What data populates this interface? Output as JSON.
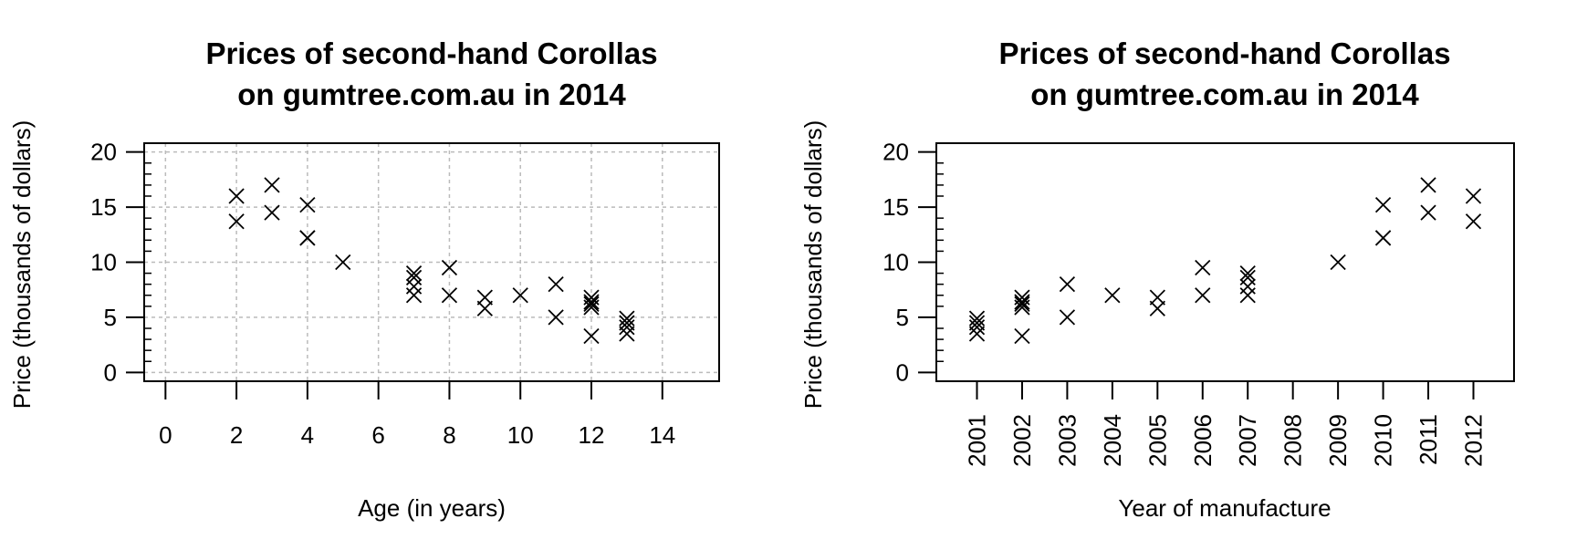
{
  "chart_data": [
    {
      "type": "scatter",
      "title": [
        "Prices of second-hand Corollas",
        "on gumtree.com.au in 2014"
      ],
      "xlabel": "Age (in years)",
      "ylabel": "Price (thousands of dollars)",
      "xlim": [
        -0.6,
        15.6
      ],
      "ylim": [
        -0.8,
        20.8
      ],
      "xticks": [
        0,
        2,
        4,
        6,
        8,
        10,
        12,
        14
      ],
      "yticks": [
        0,
        5,
        10,
        15,
        20
      ],
      "grid": true,
      "marker": "x",
      "points": [
        [
          2,
          16
        ],
        [
          2,
          13.7
        ],
        [
          3,
          17
        ],
        [
          3,
          14.5
        ],
        [
          4,
          15.2
        ],
        [
          4,
          12.2
        ],
        [
          4,
          12.2
        ],
        [
          5,
          10
        ],
        [
          7,
          9
        ],
        [
          7,
          8.6
        ],
        [
          7,
          7.8
        ],
        [
          7,
          7
        ],
        [
          8,
          9.5
        ],
        [
          8,
          7
        ],
        [
          9,
          6.8
        ],
        [
          9,
          5.8
        ],
        [
          10,
          7
        ],
        [
          11,
          8
        ],
        [
          11,
          5
        ],
        [
          12,
          6.8
        ],
        [
          12,
          6.4
        ],
        [
          12,
          6.2
        ],
        [
          12,
          5.9
        ],
        [
          12,
          3.3
        ],
        [
          13,
          4.9
        ],
        [
          13,
          4.5
        ],
        [
          13,
          4.1
        ],
        [
          13,
          3.5
        ]
      ]
    },
    {
      "type": "scatter",
      "title": [
        "Prices of second-hand Corollas",
        "on gumtree.com.au in 2014"
      ],
      "xlabel": "Year of manufacture",
      "ylabel": "Price (thousands of dollars)",
      "xlim": [
        2000.1,
        2012.9
      ],
      "ylim": [
        -0.8,
        20.8
      ],
      "xticks": [
        2001,
        2002,
        2003,
        2004,
        2005,
        2006,
        2007,
        2008,
        2009,
        2010,
        2011,
        2012
      ],
      "yticks": [
        0,
        5,
        10,
        15,
        20
      ],
      "grid": false,
      "marker": "x",
      "points": [
        [
          2012,
          16
        ],
        [
          2012,
          13.7
        ],
        [
          2011,
          17
        ],
        [
          2011,
          14.5
        ],
        [
          2010,
          15.2
        ],
        [
          2010,
          12.2
        ],
        [
          2010,
          12.2
        ],
        [
          2009,
          10
        ],
        [
          2007,
          9
        ],
        [
          2007,
          8.6
        ],
        [
          2007,
          7.8
        ],
        [
          2007,
          7
        ],
        [
          2006,
          9.5
        ],
        [
          2006,
          7
        ],
        [
          2005,
          6.8
        ],
        [
          2005,
          5.8
        ],
        [
          2004,
          7
        ],
        [
          2003,
          8
        ],
        [
          2003,
          5
        ],
        [
          2002,
          6.8
        ],
        [
          2002,
          6.4
        ],
        [
          2002,
          6.2
        ],
        [
          2002,
          5.9
        ],
        [
          2002,
          3.3
        ],
        [
          2001,
          4.9
        ],
        [
          2001,
          4.5
        ],
        [
          2001,
          4.1
        ],
        [
          2001,
          3.5
        ]
      ]
    }
  ]
}
